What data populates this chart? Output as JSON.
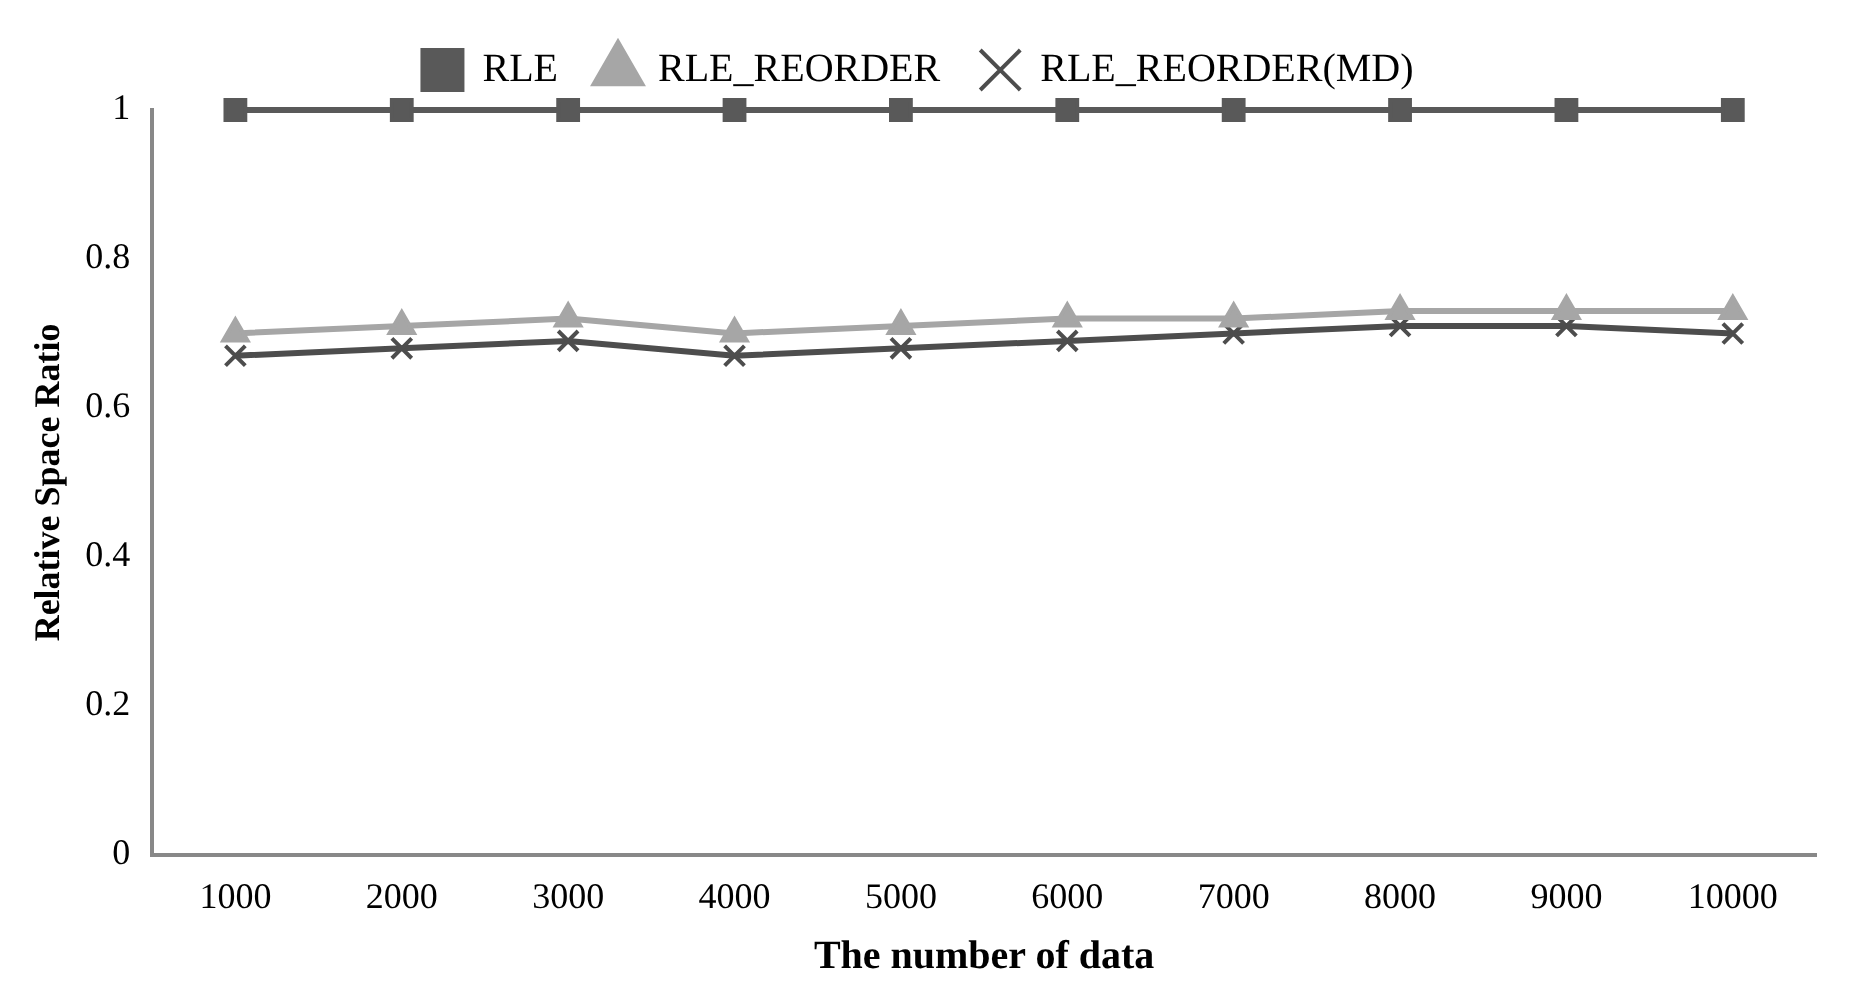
{
  "chart_data": {
    "type": "line",
    "xlabel": "The number of data",
    "ylabel": "Relative Space Ratio",
    "categories": [
      "1000",
      "2000",
      "3000",
      "4000",
      "5000",
      "6000",
      "7000",
      "8000",
      "9000",
      "10000"
    ],
    "series": [
      {
        "name": "RLE",
        "color": "#595959",
        "marker": "square",
        "values": [
          1,
          1,
          1,
          1,
          1,
          1,
          1,
          1,
          1,
          1
        ]
      },
      {
        "name": "RLE_REORDER",
        "color": "#a6a6a6",
        "marker": "triangle",
        "values": [
          0.7,
          0.71,
          0.72,
          0.7,
          0.71,
          0.72,
          0.72,
          0.73,
          0.73,
          0.73
        ]
      },
      {
        "name": "RLE_REORDER(MD)",
        "color": "#4d4d4d",
        "marker": "cross",
        "values": [
          0.67,
          0.68,
          0.69,
          0.67,
          0.68,
          0.69,
          0.7,
          0.71,
          0.71,
          0.7
        ]
      }
    ],
    "ylim": [
      0,
      1
    ],
    "yticks": [
      0,
      0.2,
      0.4,
      0.6,
      0.8,
      1
    ],
    "grid": false,
    "legend": "top",
    "line_style": "solid"
  }
}
